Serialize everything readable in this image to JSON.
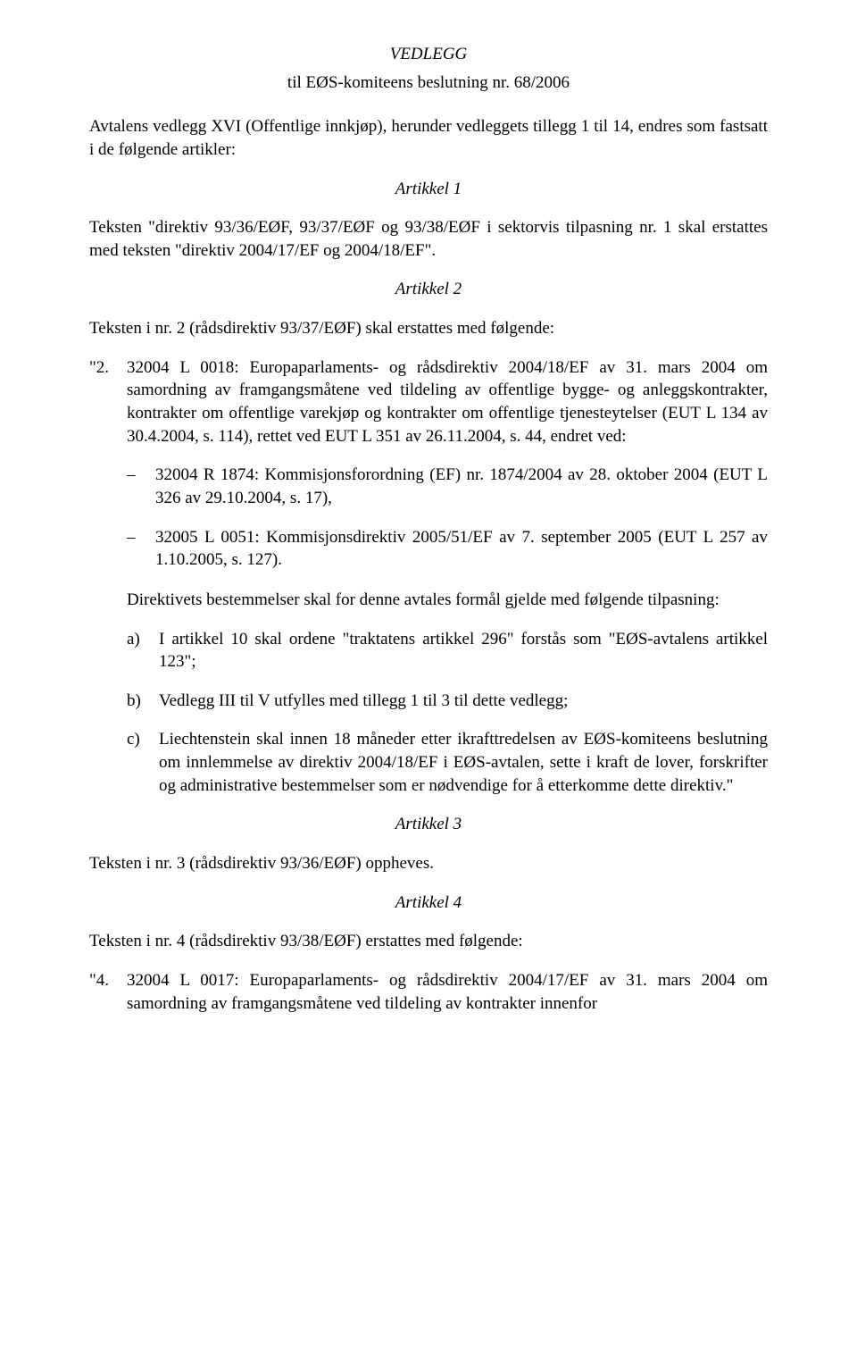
{
  "header": {
    "vedlegg": "VEDLEGG",
    "subtitle": "til EØS-komiteens beslutning nr. 68/2006"
  },
  "intro": "Avtalens vedlegg XVI (Offentlige innkjøp), herunder vedleggets tillegg 1 til 14, endres som fastsatt i de følgende artikler:",
  "article1": {
    "heading": "Artikkel 1",
    "p1": "Teksten \"direktiv 93/36/EØF, 93/37/EØF og 93/38/EØF i sektorvis tilpasning nr. 1 skal erstattes med teksten \"direktiv 2004/17/EF og 2004/18/EF\"."
  },
  "article2": {
    "heading": "Artikkel 2",
    "lead": "Teksten i nr. 2 (rådsdirektiv 93/37/EØF) skal erstattes med følgende:",
    "item2_num": "\"2.",
    "item2_body": "32004 L 0018: Europaparlaments- og rådsdirektiv 2004/18/EF av 31. mars 2004 om samordning av framgangsmåtene ved tildeling av offentlige bygge- og anleggskontrakter, kontrakter om offentlige varekjøp og kontrakter om offentlige tjenesteytelser (EUT L 134 av 30.4.2004, s. 114), rettet ved EUT L 351 av 26.11.2004, s. 44, endret ved:",
    "dash1": "32004 R 1874: Kommisjonsforordning (EF) nr. 1874/2004 av 28. oktober 2004 (EUT L 326 av 29.10.2004, s. 17),",
    "dash2": "32005 L 0051: Kommisjonsdirektiv 2005/51/EF av 7. september 2005 (EUT L 257 av 1.10.2005, s. 127).",
    "tilpasning": "Direktivets bestemmelser skal for denne avtales formål gjelde med følgende tilpasning:",
    "a_letter": "a)",
    "a_body": "I artikkel 10 skal ordene \"traktatens artikkel 296\" forstås som \"EØS-avtalens artikkel 123\";",
    "b_letter": "b)",
    "b_body": "Vedlegg III til V utfylles med tillegg 1 til 3 til dette vedlegg;",
    "c_letter": "c)",
    "c_body": "Liechtenstein skal innen 18 måneder etter ikrafttredelsen av EØS-komiteens beslutning om innlemmelse av direktiv 2004/18/EF i EØS-avtalen, sette i kraft de lover, forskrifter og administrative bestemmelser som er nødvendige for å etterkomme dette direktiv.\""
  },
  "article3": {
    "heading": "Artikkel 3",
    "p1": "Teksten i nr. 3 (rådsdirektiv 93/36/EØF) oppheves."
  },
  "article4": {
    "heading": "Artikkel 4",
    "lead": "Teksten i nr. 4 (rådsdirektiv 93/38/EØF) erstattes med følgende:",
    "item4_num": "\"4.",
    "item4_body": "32004 L 0017: Europaparlaments- og rådsdirektiv 2004/17/EF av 31. mars 2004 om samordning av framgangsmåtene ved tildeling av kontrakter innenfor"
  }
}
